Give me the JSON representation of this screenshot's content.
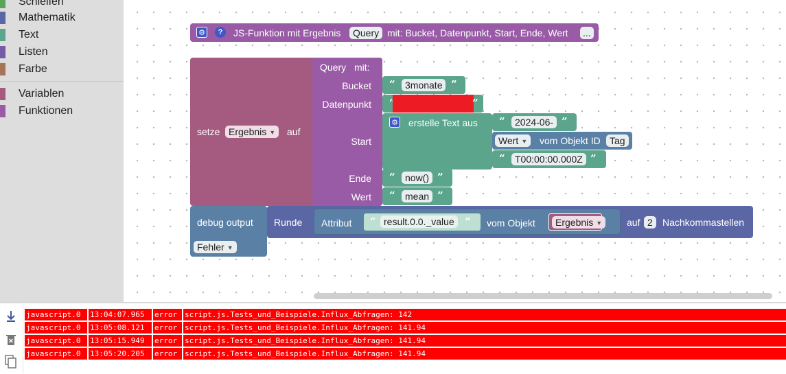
{
  "toolbox": {
    "items": [
      {
        "label": "Schleifen",
        "color": "#5ba55b"
      },
      {
        "label": "Mathematik",
        "color": "#5b67a5"
      },
      {
        "label": "Text",
        "color": "#5ba58c"
      },
      {
        "label": "Listen",
        "color": "#745ba5"
      },
      {
        "label": "Farbe",
        "color": "#a5745b"
      },
      {
        "label": "Variablen",
        "color": "#a55b80"
      },
      {
        "label": "Funktionen",
        "color": "#995ba5"
      }
    ]
  },
  "blocks": {
    "function_def": {
      "title": "JS-Funktion mit Ergebnis",
      "name": "Query",
      "params": "mit: Bucket, Datenpunkt, Start, Ende, Wert",
      "more": "..."
    },
    "set_var": {
      "prefix": "setze",
      "var": "Ergebnis",
      "suffix": "auf"
    },
    "call": {
      "name": "Query",
      "with": "mit:",
      "bucket_label": "Bucket",
      "bucket_value": "3monate",
      "datenpunkt_label": "Datenpunkt",
      "start_label": "Start",
      "ende_label": "Ende",
      "ende_value": "now()",
      "wert_label": "Wert",
      "wert_value": "mean"
    },
    "create_text": {
      "title": "erstelle Text aus",
      "part1": "2024-06-",
      "part2_field": "Wert",
      "part2_middle": "vom Objekt ID",
      "part2_id": "Tag",
      "part3": "T00:00:00.000Z"
    },
    "debug": {
      "title": "debug output",
      "level": "Fehler",
      "round": "Runde",
      "attr": "Attribut",
      "attr_value": "result.0.0._value",
      "of_object": "vom Objekt",
      "object_var": "Ergebnis",
      "on": "auf",
      "digits": "2",
      "decimals": "Nachkommastellen"
    }
  },
  "log": {
    "rows": [
      {
        "source": "javascript.0",
        "time": "13:04:07.965",
        "level": "error",
        "message": "script.js.Tests_und_Beispiele.Influx_Abfragen: 142"
      },
      {
        "source": "javascript.0",
        "time": "13:05:08.121",
        "level": "error",
        "message": "script.js.Tests_und_Beispiele.Influx_Abfragen: 141.94"
      },
      {
        "source": "javascript.0",
        "time": "13:05:15.949",
        "level": "error",
        "message": "script.js.Tests_und_Beispiele.Influx_Abfragen: 141.94"
      },
      {
        "source": "javascript.0",
        "time": "13:05:20.205",
        "level": "error",
        "message": "script.js.Tests_und_Beispiele.Influx_Abfragen: 141.94"
      }
    ],
    "tools": [
      "download-icon",
      "trash-icon",
      "copy-icon"
    ]
  },
  "colors": {
    "function": "#995ba5",
    "variable": "#a55b80",
    "text": "#5ba58c",
    "math": "#5b67a5",
    "debug": "#5b80a5",
    "error_row": "#ff0000",
    "redacted": "#ed1c24"
  }
}
